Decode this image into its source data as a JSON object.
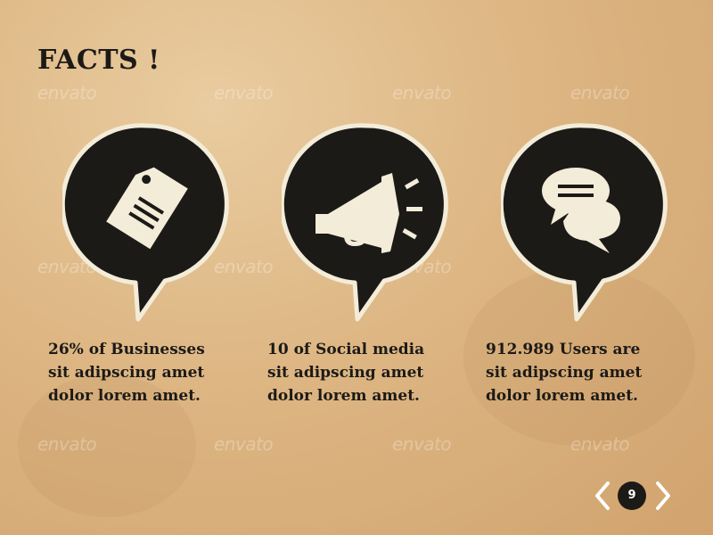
{
  "slide": {
    "title": "FACTS !",
    "watermark_text": "envato",
    "facts": [
      {
        "icon": "price-tag-icon",
        "text": "26% of Businesses\nsit  adipscing amet\ndolor lorem amet."
      },
      {
        "icon": "megaphone-icon",
        "text": "10 of Social media\nsit  adipscing amet\ndolor lorem amet."
      },
      {
        "icon": "chat-bubbles-icon",
        "text": "912.989 Users are\nsit  adipscing amet\ndolor lorem amet."
      }
    ],
    "page_number": "9"
  },
  "colors": {
    "ink": "#1c1a17",
    "bubble_fill": "#1c1a17",
    "bubble_border": "#f3ecd9",
    "icon": "#f3ecd9",
    "paper": "#ddb683"
  }
}
